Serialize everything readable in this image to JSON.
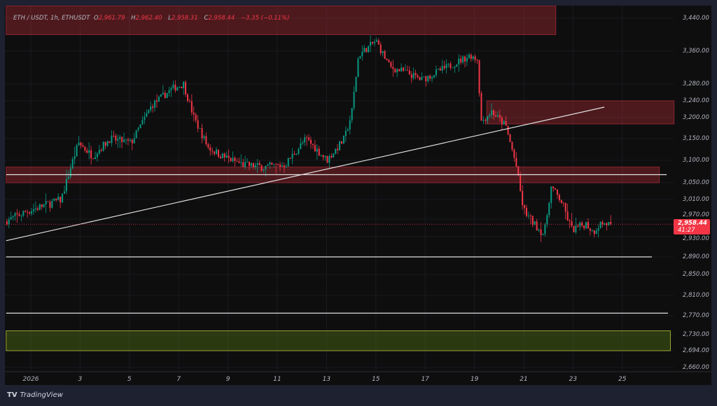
{
  "header": {
    "symbol": "ETH / USDT, 1h, ETHUSDT",
    "open_label": "O",
    "open": "2,961.79",
    "high_label": "H",
    "high": "2,962.40",
    "low_label": "L",
    "low": "2,958.31",
    "close_label": "C",
    "close": "2,958.44",
    "change": "−3.35 (−0.11%)"
  },
  "current_price": {
    "value": "2,958.44",
    "countdown": "41:27",
    "color": "#f23645"
  },
  "brand": {
    "logo": "TV",
    "name": "TradingView"
  },
  "colors": {
    "up": "#089981",
    "down": "#f23645",
    "background": "#0e0e0f",
    "frame": "#1e2130",
    "supply_zone": "#f23645",
    "demand_zone": "#6b8e23",
    "lines": "#e0e0e0"
  },
  "chart_data": {
    "type": "candlestick",
    "title": "",
    "timeframe": "1h",
    "x_unit": "day of January 2026",
    "xlim": [
      0.0,
      26.8
    ],
    "ylim": [
      2650,
      3470
    ],
    "y_ticks": [
      "3,440.00",
      "3,360.00",
      "3,280.00",
      "3,240.00",
      "3,200.00",
      "3,150.00",
      "3,100.00",
      "3,050.00",
      "3,010.00",
      "2,970.00",
      "2,930.00",
      "2,890.00",
      "2,850.00",
      "2,810.00",
      "2,770.00",
      "2,730.00",
      "2,694.00",
      "2,660.00"
    ],
    "y_tick_values": [
      3440,
      3360,
      3280,
      3240,
      3200,
      3150,
      3100,
      3050,
      3010,
      2970,
      2930,
      2890,
      2850,
      2810,
      2770,
      2730,
      2694,
      2660
    ],
    "x_ticks": [
      "2026",
      "3",
      "5",
      "7",
      "9",
      "11",
      "13",
      "15",
      "17",
      "19",
      "21",
      "23",
      "25"
    ],
    "x_tick_values": [
      1,
      3,
      5,
      7,
      9,
      11,
      13,
      15,
      17,
      19,
      21,
      23,
      25
    ],
    "grid": true,
    "price_path": [
      [
        0.03,
        2965
      ],
      [
        0.89,
        2985
      ],
      [
        2.31,
        3010
      ],
      [
        2.73,
        3090
      ],
      [
        3.02,
        3140
      ],
      [
        3.59,
        3110
      ],
      [
        4.3,
        3150
      ],
      [
        5.15,
        3140
      ],
      [
        6.0,
        3230
      ],
      [
        6.85,
        3270
      ],
      [
        7.28,
        3280
      ],
      [
        7.7,
        3200
      ],
      [
        8.27,
        3130
      ],
      [
        8.84,
        3110
      ],
      [
        9.69,
        3090
      ],
      [
        10.55,
        3085
      ],
      [
        11.4,
        3090
      ],
      [
        12.25,
        3150
      ],
      [
        13.1,
        3100
      ],
      [
        13.81,
        3150
      ],
      [
        14.1,
        3210
      ],
      [
        14.38,
        3350
      ],
      [
        15.09,
        3385
      ],
      [
        15.66,
        3320
      ],
      [
        16.23,
        3310
      ],
      [
        16.94,
        3290
      ],
      [
        17.93,
        3320
      ],
      [
        18.93,
        3350
      ],
      [
        19.21,
        3340
      ],
      [
        19.35,
        3190
      ],
      [
        19.78,
        3215
      ],
      [
        20.35,
        3180
      ],
      [
        20.77,
        3090
      ],
      [
        21.06,
        2990
      ],
      [
        21.48,
        2960
      ],
      [
        21.91,
        2935
      ],
      [
        22.19,
        3040
      ],
      [
        22.62,
        3005
      ],
      [
        23.05,
        2945
      ],
      [
        23.61,
        2960
      ],
      [
        23.9,
        2940
      ],
      [
        24.18,
        2960
      ],
      [
        24.55,
        2958.44
      ]
    ],
    "zones": [
      {
        "kind": "supply",
        "from": 0.0,
        "to": 22.3,
        "top": 3470,
        "bottom": 3400
      },
      {
        "kind": "supply",
        "from": 19.5,
        "to": 27.1,
        "top": 3240,
        "bottom": 3185
      },
      {
        "kind": "supply",
        "from": 0.0,
        "to": 26.5,
        "top": 3085,
        "bottom": 3050
      },
      {
        "kind": "demand",
        "from": 0.0,
        "to": 26.95,
        "top": 2738,
        "bottom": 2694
      }
    ],
    "horizontal_lines": [
      {
        "price": 3068,
        "from": 0.0,
        "to": 26.8
      },
      {
        "price": 2890,
        "from": 0.0,
        "to": 26.2
      },
      {
        "price": 2775,
        "from": 0.0,
        "to": 26.85
      }
    ],
    "trendline": {
      "from": [
        0.0,
        2922
      ],
      "to": [
        24.27,
        3225
      ]
    },
    "last_price": 2958.44
  }
}
